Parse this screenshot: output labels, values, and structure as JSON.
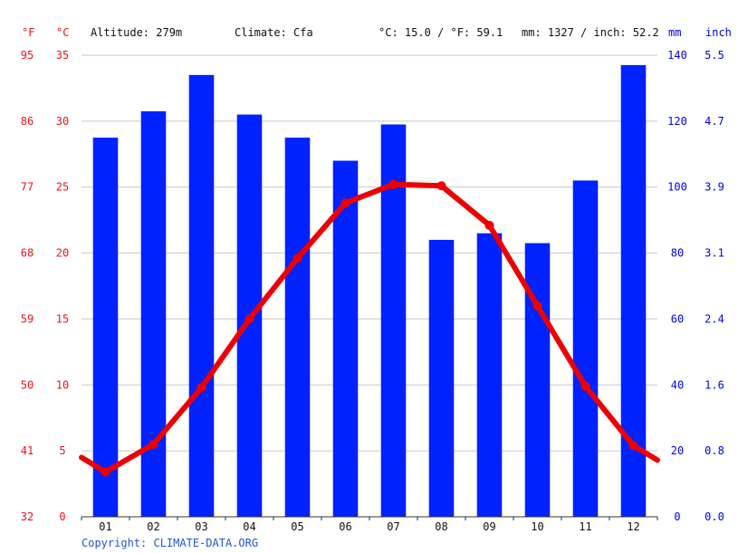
{
  "header": {
    "f_unit": "°F",
    "c_unit": "°C",
    "altitude": "Altitude: 279m",
    "climate": "Climate: Cfa",
    "temp_avg": "°C: 15.0 / °F: 59.1",
    "precip_total": "mm: 1327 / inch: 52.2",
    "mm_unit": "mm",
    "inch_unit": "inch"
  },
  "copyright": "Copyright: CLIMATE-DATA.ORG",
  "axes": {
    "celsius_ticks": [
      "0",
      "5",
      "10",
      "15",
      "20",
      "25",
      "30",
      "35"
    ],
    "fahrenheit_ticks": [
      "32",
      "41",
      "50",
      "59",
      "68",
      "77",
      "86",
      "95"
    ],
    "mm_ticks": [
      "0",
      "20",
      "40",
      "60",
      "80",
      "100",
      "120",
      "140"
    ],
    "inch_ticks": [
      "0.0",
      "0.8",
      "1.6",
      "2.4",
      "3.1",
      "3.9",
      "4.7",
      "5.5"
    ]
  },
  "colors": {
    "temperature": "#ee0000",
    "precipitation": "#0022ff",
    "grid": "#c8c8c8",
    "axis_red": "#e8141b",
    "axis_blue": "#0000ee"
  },
  "chart_data": {
    "type": "bar",
    "categories": [
      "01",
      "02",
      "03",
      "04",
      "05",
      "06",
      "07",
      "08",
      "09",
      "10",
      "11",
      "12"
    ],
    "series": [
      {
        "type": "bar",
        "axis": "mm",
        "values": [
          115,
          123,
          134,
          122,
          115,
          108,
          119,
          84,
          86,
          83,
          102,
          137
        ]
      },
      {
        "type": "line",
        "axis": "celsius",
        "values": [
          3.4,
          5.5,
          9.8,
          15.0,
          19.6,
          23.8,
          25.2,
          25.1,
          22.1,
          16.0,
          9.9,
          5.4
        ]
      }
    ],
    "line_start_value": 4.5,
    "line_end_value": 4.3,
    "ylim_celsius": [
      0,
      35
    ],
    "ylim_mm": [
      0,
      140
    ],
    "grid": true
  }
}
